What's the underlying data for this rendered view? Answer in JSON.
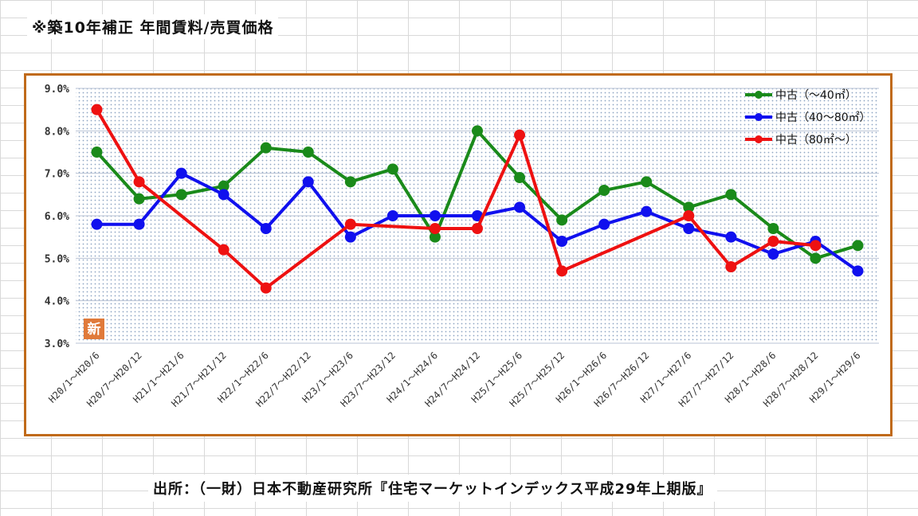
{
  "page": {
    "title": "※築10年補正 年間賃料/売買価格",
    "source": "出所：（一財）日本不動産研究所『住宅マーケットインデックス平成29年上期版』",
    "badge": "新"
  },
  "chart_data": {
    "type": "line",
    "title": "",
    "xlabel": "",
    "ylabel": "",
    "ylim": [
      3.0,
      9.0
    ],
    "yticks": [
      "3.0%",
      "4.0%",
      "5.0%",
      "6.0%",
      "7.0%",
      "8.0%",
      "9.0%"
    ],
    "grid": true,
    "legend_position": "top-right",
    "categories": [
      "H20/1～H20/6",
      "H20/7～H20/12",
      "H21/1～H21/6",
      "H21/7～H21/12",
      "H22/1～H22/6",
      "H22/7～H22/12",
      "H23/1～H23/6",
      "H23/7～H23/12",
      "H24/1～H24/6",
      "H24/7～H24/12",
      "H25/1～H25/6",
      "H25/7～H25/12",
      "H26/1～H26/6",
      "H26/7～H26/12",
      "H27/1～H27/6",
      "H27/7～H27/12",
      "H28/1～H28/6",
      "H28/7～H28/12",
      "H29/1～H29/6"
    ],
    "series": [
      {
        "name": "中古（～40㎡）",
        "color": "#1a8a1a",
        "values": [
          7.5,
          6.4,
          6.5,
          6.7,
          7.6,
          7.5,
          6.8,
          7.1,
          5.5,
          8.0,
          6.9,
          5.9,
          6.6,
          6.8,
          6.2,
          6.5,
          5.7,
          5.0,
          5.3
        ]
      },
      {
        "name": "中古（40～80㎡）",
        "color": "#1010ee",
        "values": [
          5.8,
          5.8,
          7.0,
          6.5,
          5.7,
          6.8,
          5.5,
          6.0,
          6.0,
          6.0,
          6.2,
          5.4,
          5.8,
          6.1,
          5.7,
          5.5,
          5.1,
          5.4,
          4.7
        ]
      },
      {
        "name": "中古（80㎡～）",
        "color": "#ee1111",
        "values": [
          8.5,
          6.8,
          null,
          5.2,
          4.3,
          null,
          5.8,
          null,
          5.7,
          5.7,
          7.9,
          4.7,
          null,
          null,
          6.0,
          4.8,
          5.4,
          5.3,
          null
        ]
      }
    ]
  }
}
